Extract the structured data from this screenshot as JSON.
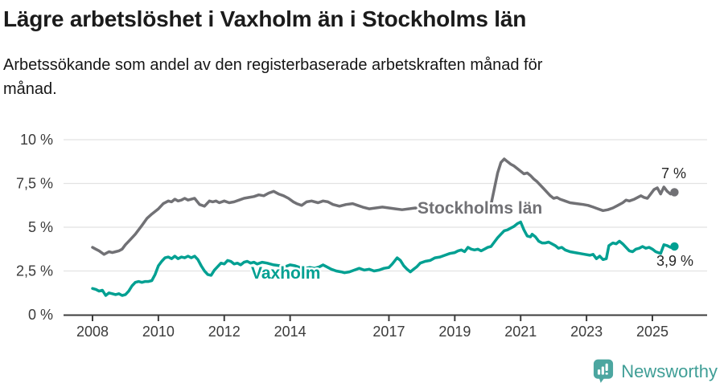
{
  "header": {
    "title": "Lägre arbetslöshet i Vaxholm än i Stockholms län",
    "subtitle": "Arbetssökande som andel av den registerbaserade arbetskraften månad för månad."
  },
  "chart_data": {
    "type": "line",
    "unit": "%",
    "grid": "horizontal",
    "legend": "inline-labels",
    "x_axis": {
      "tick_years": [
        2008,
        2010,
        2012,
        2014,
        2017,
        2019,
        2021,
        2023,
        2025
      ],
      "tick_labels": [
        "2008",
        "2010",
        "2012",
        "2014",
        "2017",
        "2019",
        "2021",
        "2023",
        "2025"
      ],
      "range": [
        2008,
        2025.7
      ]
    },
    "y_axis": {
      "tick_values": [
        0,
        2.5,
        5,
        7.5,
        10
      ],
      "tick_labels": [
        "0 %",
        "2,5 %",
        "5 %",
        "7,5 %",
        "10 %"
      ],
      "range": [
        0,
        10
      ]
    },
    "series": [
      {
        "name": "Stockholms län",
        "color": "#717175",
        "end_label": "7 %",
        "points": [
          [
            2008.0,
            3.85
          ],
          [
            2008.1,
            3.75
          ],
          [
            2008.2,
            3.65
          ],
          [
            2008.35,
            3.45
          ],
          [
            2008.5,
            3.6
          ],
          [
            2008.6,
            3.55
          ],
          [
            2008.7,
            3.6
          ],
          [
            2008.8,
            3.65
          ],
          [
            2008.9,
            3.75
          ],
          [
            2009.0,
            4.0
          ],
          [
            2009.15,
            4.3
          ],
          [
            2009.3,
            4.6
          ],
          [
            2009.5,
            5.1
          ],
          [
            2009.65,
            5.5
          ],
          [
            2009.8,
            5.75
          ],
          [
            2009.9,
            5.9
          ],
          [
            2010.0,
            6.05
          ],
          [
            2010.15,
            6.35
          ],
          [
            2010.3,
            6.5
          ],
          [
            2010.4,
            6.45
          ],
          [
            2010.5,
            6.6
          ],
          [
            2010.6,
            6.5
          ],
          [
            2010.7,
            6.55
          ],
          [
            2010.8,
            6.65
          ],
          [
            2010.9,
            6.55
          ],
          [
            2011.0,
            6.6
          ],
          [
            2011.1,
            6.65
          ],
          [
            2011.25,
            6.3
          ],
          [
            2011.4,
            6.2
          ],
          [
            2011.55,
            6.5
          ],
          [
            2011.65,
            6.45
          ],
          [
            2011.75,
            6.5
          ],
          [
            2011.85,
            6.4
          ],
          [
            2012.0,
            6.5
          ],
          [
            2012.15,
            6.4
          ],
          [
            2012.3,
            6.45
          ],
          [
            2012.45,
            6.55
          ],
          [
            2012.6,
            6.65
          ],
          [
            2012.75,
            6.7
          ],
          [
            2012.9,
            6.75
          ],
          [
            2013.05,
            6.85
          ],
          [
            2013.2,
            6.8
          ],
          [
            2013.35,
            6.95
          ],
          [
            2013.5,
            7.05
          ],
          [
            2013.65,
            6.9
          ],
          [
            2013.8,
            6.8
          ],
          [
            2013.95,
            6.65
          ],
          [
            2014.1,
            6.45
          ],
          [
            2014.2,
            6.35
          ],
          [
            2014.35,
            6.25
          ],
          [
            2014.5,
            6.45
          ],
          [
            2014.65,
            6.5
          ],
          [
            2014.85,
            6.4
          ],
          [
            2015.0,
            6.5
          ],
          [
            2015.15,
            6.45
          ],
          [
            2015.3,
            6.3
          ],
          [
            2015.5,
            6.2
          ],
          [
            2015.7,
            6.3
          ],
          [
            2015.9,
            6.35
          ],
          [
            2016.05,
            6.25
          ],
          [
            2016.2,
            6.15
          ],
          [
            2016.4,
            6.05
          ],
          [
            2016.6,
            6.1
          ],
          [
            2016.8,
            6.15
          ],
          [
            2017.0,
            6.1
          ],
          [
            2017.2,
            6.05
          ],
          [
            2017.4,
            6.0
          ],
          [
            2017.6,
            6.05
          ],
          [
            2017.8,
            6.1
          ],
          [
            2018.0,
            6.0
          ],
          [
            2018.2,
            6.05
          ],
          [
            2018.4,
            6.1
          ],
          [
            2018.6,
            6.05
          ],
          [
            2018.8,
            6.0
          ],
          [
            2019.0,
            6.1
          ],
          [
            2019.2,
            6.15
          ],
          [
            2019.4,
            6.1
          ],
          [
            2019.6,
            6.2
          ],
          [
            2019.8,
            6.15
          ],
          [
            2020.0,
            6.0
          ],
          [
            2020.1,
            6.3
          ],
          [
            2020.2,
            7.2
          ],
          [
            2020.3,
            8.1
          ],
          [
            2020.4,
            8.7
          ],
          [
            2020.5,
            8.9
          ],
          [
            2020.6,
            8.75
          ],
          [
            2020.7,
            8.6
          ],
          [
            2020.8,
            8.5
          ],
          [
            2020.9,
            8.35
          ],
          [
            2021.0,
            8.2
          ],
          [
            2021.1,
            8.05
          ],
          [
            2021.2,
            8.1
          ],
          [
            2021.3,
            7.95
          ],
          [
            2021.4,
            7.75
          ],
          [
            2021.5,
            7.6
          ],
          [
            2021.6,
            7.4
          ],
          [
            2021.7,
            7.2
          ],
          [
            2021.8,
            7.0
          ],
          [
            2021.9,
            6.8
          ],
          [
            2022.0,
            6.65
          ],
          [
            2022.1,
            6.7
          ],
          [
            2022.2,
            6.6
          ],
          [
            2022.35,
            6.5
          ],
          [
            2022.5,
            6.4
          ],
          [
            2022.7,
            6.35
          ],
          [
            2022.9,
            6.3
          ],
          [
            2023.05,
            6.25
          ],
          [
            2023.2,
            6.15
          ],
          [
            2023.35,
            6.05
          ],
          [
            2023.5,
            5.95
          ],
          [
            2023.65,
            6.0
          ],
          [
            2023.8,
            6.1
          ],
          [
            2023.95,
            6.25
          ],
          [
            2024.1,
            6.4
          ],
          [
            2024.2,
            6.55
          ],
          [
            2024.3,
            6.5
          ],
          [
            2024.45,
            6.6
          ],
          [
            2024.55,
            6.7
          ],
          [
            2024.65,
            6.8
          ],
          [
            2024.75,
            6.7
          ],
          [
            2024.85,
            6.65
          ],
          [
            2024.95,
            6.9
          ],
          [
            2025.05,
            7.15
          ],
          [
            2025.15,
            7.25
          ],
          [
            2025.25,
            6.9
          ],
          [
            2025.35,
            7.3
          ],
          [
            2025.45,
            7.05
          ],
          [
            2025.55,
            6.9
          ],
          [
            2025.67,
            7.0
          ]
        ]
      },
      {
        "name": "Vaxholm",
        "color": "#00a092",
        "end_label": "3,9 %",
        "points": [
          [
            2008.0,
            1.5
          ],
          [
            2008.1,
            1.45
          ],
          [
            2008.2,
            1.35
          ],
          [
            2008.3,
            1.4
          ],
          [
            2008.4,
            1.1
          ],
          [
            2008.5,
            1.25
          ],
          [
            2008.6,
            1.2
          ],
          [
            2008.7,
            1.15
          ],
          [
            2008.8,
            1.2
          ],
          [
            2008.9,
            1.1
          ],
          [
            2009.0,
            1.15
          ],
          [
            2009.1,
            1.35
          ],
          [
            2009.2,
            1.65
          ],
          [
            2009.3,
            1.85
          ],
          [
            2009.4,
            1.9
          ],
          [
            2009.5,
            1.85
          ],
          [
            2009.6,
            1.9
          ],
          [
            2009.7,
            1.9
          ],
          [
            2009.8,
            1.95
          ],
          [
            2009.9,
            2.3
          ],
          [
            2010.0,
            2.8
          ],
          [
            2010.1,
            3.05
          ],
          [
            2010.2,
            3.25
          ],
          [
            2010.3,
            3.3
          ],
          [
            2010.4,
            3.2
          ],
          [
            2010.5,
            3.35
          ],
          [
            2010.6,
            3.2
          ],
          [
            2010.7,
            3.3
          ],
          [
            2010.8,
            3.25
          ],
          [
            2010.9,
            3.35
          ],
          [
            2011.0,
            3.25
          ],
          [
            2011.1,
            3.35
          ],
          [
            2011.2,
            3.15
          ],
          [
            2011.3,
            2.8
          ],
          [
            2011.4,
            2.5
          ],
          [
            2011.5,
            2.3
          ],
          [
            2011.6,
            2.25
          ],
          [
            2011.7,
            2.55
          ],
          [
            2011.8,
            2.75
          ],
          [
            2011.9,
            2.95
          ],
          [
            2012.0,
            2.9
          ],
          [
            2012.1,
            3.1
          ],
          [
            2012.2,
            3.05
          ],
          [
            2012.3,
            2.9
          ],
          [
            2012.4,
            2.95
          ],
          [
            2012.5,
            2.85
          ],
          [
            2012.6,
            3.0
          ],
          [
            2012.7,
            3.05
          ],
          [
            2012.8,
            2.95
          ],
          [
            2012.9,
            3.0
          ],
          [
            2013.0,
            2.9
          ],
          [
            2013.15,
            3.0
          ],
          [
            2013.3,
            2.95
          ],
          [
            2013.5,
            2.85
          ],
          [
            2013.7,
            2.8
          ],
          [
            2013.85,
            2.75
          ],
          [
            2014.0,
            2.85
          ],
          [
            2014.15,
            2.8
          ],
          [
            2014.3,
            2.7
          ],
          [
            2014.45,
            2.65
          ],
          [
            2014.6,
            2.7
          ],
          [
            2014.75,
            2.65
          ],
          [
            2014.9,
            2.75
          ],
          [
            2015.0,
            2.85
          ],
          [
            2015.1,
            2.75
          ],
          [
            2015.25,
            2.6
          ],
          [
            2015.4,
            2.5
          ],
          [
            2015.55,
            2.45
          ],
          [
            2015.65,
            2.4
          ],
          [
            2015.8,
            2.45
          ],
          [
            2015.95,
            2.55
          ],
          [
            2016.1,
            2.65
          ],
          [
            2016.25,
            2.55
          ],
          [
            2016.4,
            2.6
          ],
          [
            2016.55,
            2.5
          ],
          [
            2016.7,
            2.55
          ],
          [
            2016.85,
            2.65
          ],
          [
            2017.0,
            2.7
          ],
          [
            2017.1,
            2.9
          ],
          [
            2017.25,
            3.25
          ],
          [
            2017.35,
            3.1
          ],
          [
            2017.45,
            2.8
          ],
          [
            2017.55,
            2.6
          ],
          [
            2017.65,
            2.45
          ],
          [
            2017.75,
            2.6
          ],
          [
            2017.85,
            2.75
          ],
          [
            2017.95,
            2.95
          ],
          [
            2018.1,
            3.05
          ],
          [
            2018.25,
            3.1
          ],
          [
            2018.4,
            3.25
          ],
          [
            2018.55,
            3.3
          ],
          [
            2018.7,
            3.4
          ],
          [
            2018.85,
            3.5
          ],
          [
            2019.0,
            3.55
          ],
          [
            2019.1,
            3.65
          ],
          [
            2019.2,
            3.7
          ],
          [
            2019.3,
            3.6
          ],
          [
            2019.4,
            3.85
          ],
          [
            2019.5,
            3.75
          ],
          [
            2019.6,
            3.7
          ],
          [
            2019.7,
            3.75
          ],
          [
            2019.8,
            3.65
          ],
          [
            2019.9,
            3.75
          ],
          [
            2020.0,
            3.85
          ],
          [
            2020.1,
            3.9
          ],
          [
            2020.2,
            4.15
          ],
          [
            2020.3,
            4.4
          ],
          [
            2020.4,
            4.6
          ],
          [
            2020.5,
            4.8
          ],
          [
            2020.6,
            4.85
          ],
          [
            2020.7,
            4.95
          ],
          [
            2020.8,
            5.05
          ],
          [
            2020.9,
            5.2
          ],
          [
            2021.0,
            5.3
          ],
          [
            2021.1,
            4.85
          ],
          [
            2021.2,
            4.5
          ],
          [
            2021.3,
            4.45
          ],
          [
            2021.35,
            4.6
          ],
          [
            2021.45,
            4.45
          ],
          [
            2021.55,
            4.2
          ],
          [
            2021.65,
            4.1
          ],
          [
            2021.75,
            4.1
          ],
          [
            2021.85,
            4.15
          ],
          [
            2021.95,
            4.05
          ],
          [
            2022.05,
            3.95
          ],
          [
            2022.15,
            3.8
          ],
          [
            2022.25,
            3.85
          ],
          [
            2022.35,
            3.7
          ],
          [
            2022.5,
            3.6
          ],
          [
            2022.65,
            3.55
          ],
          [
            2022.8,
            3.5
          ],
          [
            2022.95,
            3.45
          ],
          [
            2023.1,
            3.4
          ],
          [
            2023.2,
            3.45
          ],
          [
            2023.3,
            3.2
          ],
          [
            2023.4,
            3.35
          ],
          [
            2023.5,
            3.15
          ],
          [
            2023.6,
            3.2
          ],
          [
            2023.68,
            3.95
          ],
          [
            2023.8,
            4.1
          ],
          [
            2023.9,
            4.05
          ],
          [
            2024.0,
            4.2
          ],
          [
            2024.1,
            4.05
          ],
          [
            2024.2,
            3.85
          ],
          [
            2024.3,
            3.65
          ],
          [
            2024.4,
            3.6
          ],
          [
            2024.5,
            3.75
          ],
          [
            2024.6,
            3.8
          ],
          [
            2024.7,
            3.9
          ],
          [
            2024.8,
            3.8
          ],
          [
            2024.9,
            3.85
          ],
          [
            2025.0,
            3.75
          ],
          [
            2025.1,
            3.6
          ],
          [
            2025.25,
            3.5
          ],
          [
            2025.35,
            4.0
          ],
          [
            2025.45,
            3.95
          ],
          [
            2025.55,
            3.85
          ],
          [
            2025.67,
            3.9
          ]
        ]
      }
    ]
  },
  "footer": {
    "brand": "Newsworthy",
    "logo_icon": "bar-chart-speech-bubble-icon"
  },
  "colors": {
    "series_gray": "#717175",
    "series_teal": "#00a092",
    "brand_teal": "#3f9e96",
    "axis_text": "#3b3b3b",
    "grid": "#e2e2e2"
  }
}
